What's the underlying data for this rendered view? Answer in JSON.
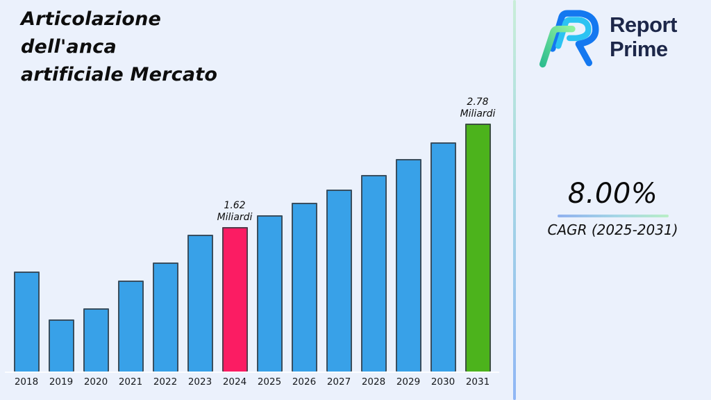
{
  "page": {
    "background": "#ebf1fc"
  },
  "title": {
    "full": "Articolazione dell'anca artificiale Mercato",
    "lines": [
      "Articolazione",
      "dell'anca",
      "artificiale Mercato"
    ]
  },
  "brand": {
    "line1": "Report",
    "line2": "Prime",
    "text_color": "#1d2749",
    "mark_colors": {
      "outer": "#1478f0",
      "inner": "#2cc3f2",
      "accent_start": "#2fbe8f",
      "accent_end": "#8ff19e"
    }
  },
  "cagr": {
    "value": "8.00%",
    "label": "CAGR (2025-2031)"
  },
  "chart_data": {
    "type": "bar",
    "title": "Articolazione dell'anca artificiale Mercato",
    "unit": "Miliardi",
    "categories": [
      "2018",
      "2019",
      "2020",
      "2021",
      "2022",
      "2023",
      "2024",
      "2025",
      "2026",
      "2027",
      "2028",
      "2029",
      "2030",
      "2031"
    ],
    "values": [
      1.12,
      0.58,
      0.71,
      1.02,
      1.22,
      1.53,
      1.62,
      1.75,
      1.89,
      2.04,
      2.2,
      2.38,
      2.57,
      2.78
    ],
    "highlight_year": "2024",
    "forecast_end_year": "2031",
    "colors": {
      "default": "#38a1e8",
      "highlight": "#fb1c63",
      "forecast_end": "#4cb31c"
    },
    "annotations": [
      {
        "year": "2024",
        "value_label": "1.62",
        "unit_label": "Miliardi"
      },
      {
        "year": "2031",
        "value_label": "2.78",
        "unit_label": "Miliardi"
      }
    ],
    "xlabel": "",
    "ylabel": "",
    "ylim": [
      0,
      2.9
    ],
    "grid": false,
    "legend": false
  }
}
